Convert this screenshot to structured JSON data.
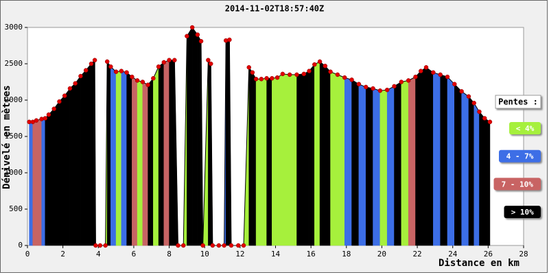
{
  "chart_data": {
    "type": "area",
    "title": "2014-11-02T18:57:40Z",
    "x_label": "Distance en km",
    "y_label": "Dénivelé en mètres",
    "x": [
      0.1,
      0.3,
      0.5,
      0.8,
      1.0,
      1.2,
      1.5,
      1.8,
      2.1,
      2.4,
      2.7,
      3.0,
      3.3,
      3.6,
      3.8,
      3.85,
      4.1,
      4.4,
      4.5,
      4.7,
      5.0,
      5.3,
      5.6,
      5.9,
      6.2,
      6.5,
      6.8,
      7.1,
      7.4,
      7.7,
      8.0,
      8.3,
      8.5,
      8.8,
      9.0,
      9.3,
      9.6,
      9.8,
      9.9,
      10.2,
      10.35,
      10.45,
      10.8,
      11.1,
      11.2,
      11.4,
      11.5,
      11.9,
      12.2,
      12.5,
      12.7,
      12.9,
      13.2,
      13.5,
      13.8,
      14.1,
      14.4,
      14.8,
      15.2,
      15.6,
      15.9,
      16.2,
      16.5,
      16.8,
      17.1,
      17.5,
      17.9,
      18.3,
      18.7,
      19.1,
      19.5,
      19.9,
      20.3,
      20.7,
      21.1,
      21.5,
      21.9,
      22.2,
      22.5,
      22.9,
      23.3,
      23.7,
      24.1,
      24.5,
      24.9,
      25.2,
      25.5,
      25.8,
      26.1
    ],
    "series": [
      {
        "values": [
          1700,
          1700,
          1720,
          1740,
          1750,
          1800,
          1880,
          1980,
          2060,
          2160,
          2230,
          2330,
          2410,
          2500,
          2550,
          0,
          0,
          0,
          2530,
          2460,
          2390,
          2400,
          2380,
          2320,
          2270,
          2250,
          2210,
          2300,
          2460,
          2520,
          2550,
          2550,
          0,
          0,
          2880,
          3000,
          2900,
          2810,
          0,
          2550,
          2500,
          0,
          0,
          0,
          2820,
          2830,
          0,
          0,
          0,
          2450,
          2380,
          2290,
          2290,
          2300,
          2300,
          2310,
          2360,
          2350,
          2350,
          2360,
          2400,
          2490,
          2530,
          2470,
          2390,
          2350,
          2310,
          2280,
          2220,
          2180,
          2160,
          2130,
          2140,
          2190,
          2250,
          2270,
          2320,
          2400,
          2450,
          2380,
          2350,
          2320,
          2220,
          2120,
          2050,
          1960,
          1840,
          1750,
          1700
        ],
        "marker_color": "#e00000",
        "segment_colors": [
          "#3c6ee6",
          "#c86464",
          "#c86464",
          "#3c6ee6",
          "#000000",
          "#000000",
          "#000000",
          "#000000",
          "#000000",
          "#000000",
          "#000000",
          "#000000",
          "#000000",
          "#000000",
          "#000000",
          "#000000",
          "#000000",
          "#a6f03c",
          "#000000",
          "#3c6ee6",
          "#a6f03c",
          "#3c6ee6",
          "#000000",
          "#c86464",
          "#a6f03c",
          "#c86464",
          "#000000",
          "#a6f03c",
          "#000000",
          "#c86464",
          "#000000",
          "#000000",
          "#000000",
          "#a6f03c",
          "#000000",
          "#000000",
          "#000000",
          "#000000",
          "#a6f03c",
          "#000000",
          "#000000",
          "#000000",
          "#000000",
          "#3c6ee6",
          "#000000",
          "#000000",
          "#000000",
          "#000000",
          "#a6f03c",
          "#000000",
          "#000000",
          "#a6f03c",
          "#a6f03c",
          "#000000",
          "#a6f03c",
          "#a6f03c",
          "#a6f03c",
          "#a6f03c",
          "#000000",
          "#000000",
          "#000000",
          "#a6f03c",
          "#000000",
          "#000000",
          "#a6f03c",
          "#a6f03c",
          "#3c6ee6",
          "#000000",
          "#3c6ee6",
          "#000000",
          "#3c6ee6",
          "#a6f03c",
          "#3c6ee6",
          "#000000",
          "#a6f03c",
          "#c86464",
          "#000000",
          "#000000",
          "#000000",
          "#3c6ee6",
          "#000000",
          "#3c6ee6",
          "#000000",
          "#3c6ee6",
          "#000000",
          "#3c6ee6",
          "#000000",
          "#000000"
        ]
      }
    ],
    "xlim": [
      0,
      28
    ],
    "xticks": [
      0,
      2,
      4,
      6,
      8,
      10,
      12,
      14,
      16,
      18,
      20,
      22,
      24,
      26,
      28
    ],
    "ylim": [
      0,
      3000
    ],
    "yticks": [
      0,
      500,
      1000,
      1500,
      2000,
      2500,
      3000
    ],
    "legend": {
      "title": "Pentes :",
      "entries": [
        {
          "label": "< 4%",
          "color": "#a6f03c"
        },
        {
          "label": "4 - 7%",
          "color": "#3c6ee6"
        },
        {
          "label": "7 - 10%",
          "color": "#c86464"
        },
        {
          "label": "> 10%",
          "color": "#000000"
        }
      ]
    }
  }
}
